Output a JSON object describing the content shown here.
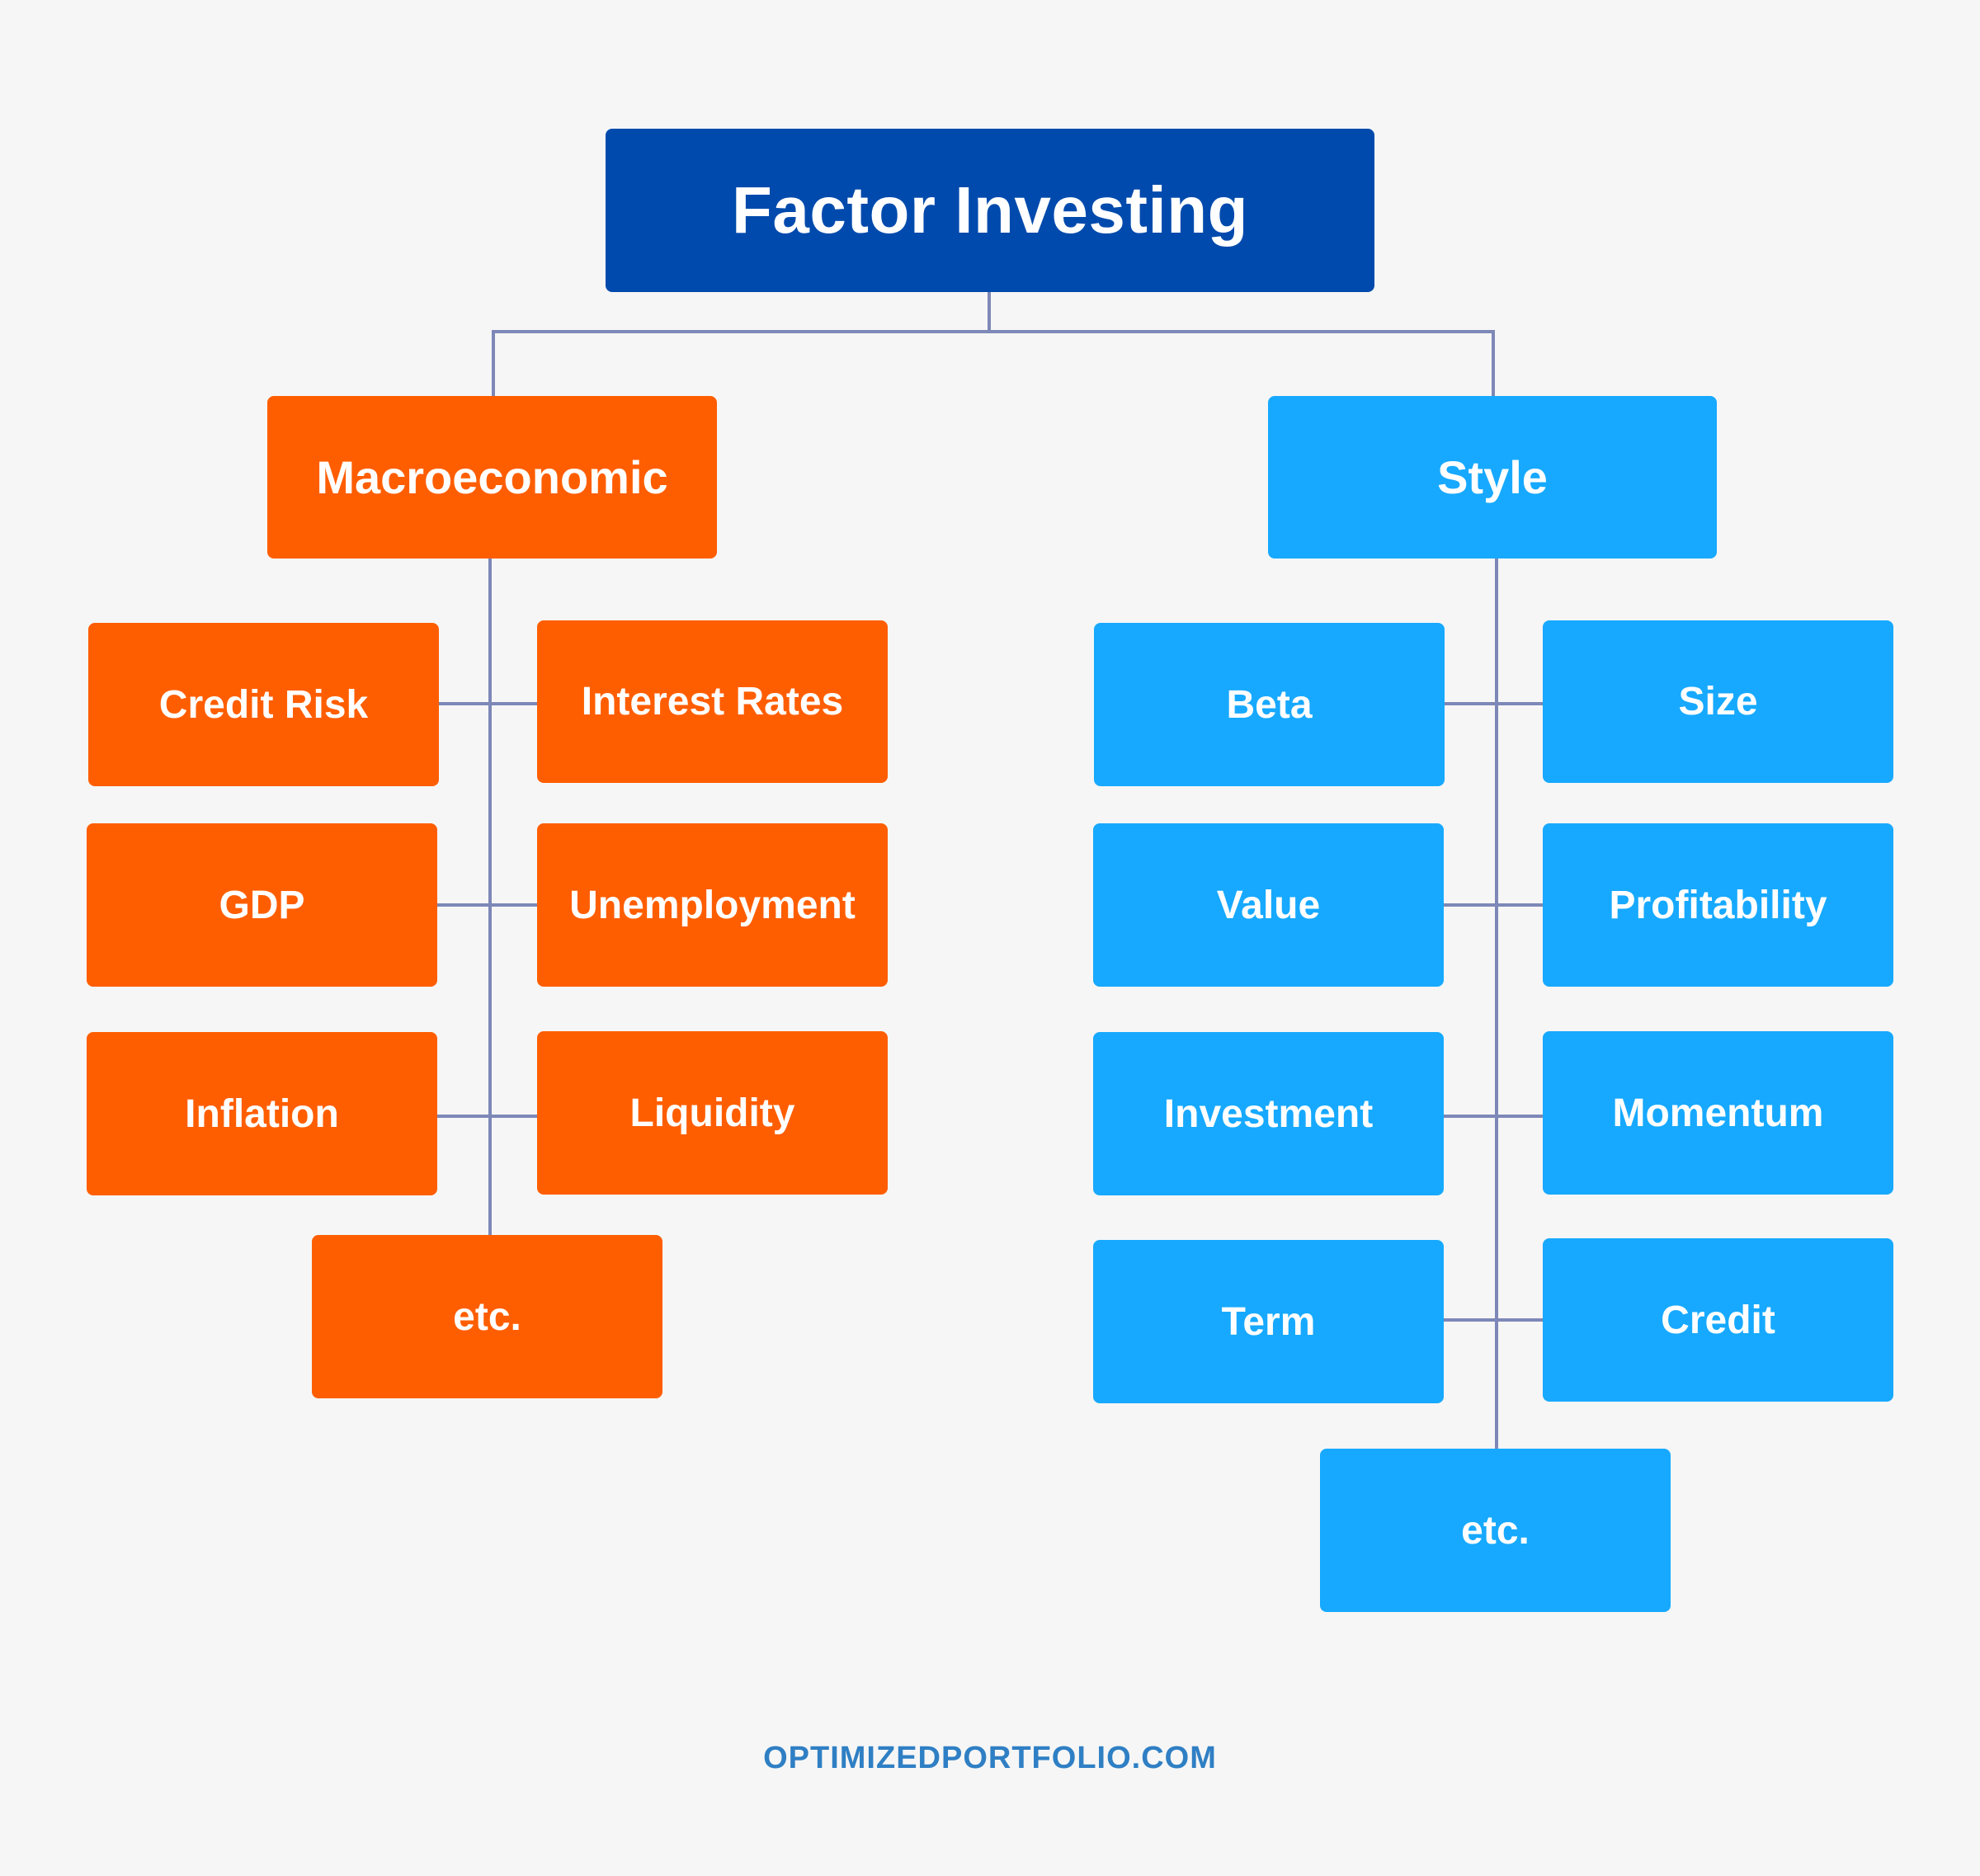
{
  "root": {
    "label": "Factor Investing",
    "color": "#004aad"
  },
  "macroeconomic": {
    "label": "Macroeconomic",
    "color": "#ff5e00",
    "items": [
      "Credit Risk",
      "Interest Rates",
      "GDP",
      "Unemployment",
      "Inflation",
      "Liquidity",
      "etc."
    ]
  },
  "style": {
    "label": "Style",
    "color": "#17a9ff",
    "items": [
      "Beta",
      "Size",
      "Value",
      "Profitability",
      "Investment",
      "Momentum",
      "Term",
      "Credit",
      "etc."
    ]
  },
  "footer": {
    "text": "OPTIMIZEDPORTFOLIO.COM"
  },
  "connector_color": "#7d88b8",
  "background_color": "#f6f6f6"
}
